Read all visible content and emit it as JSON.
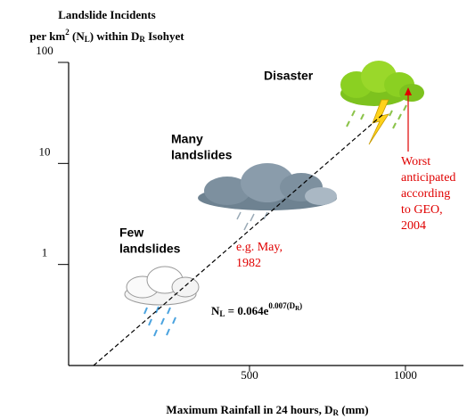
{
  "chart_data": {
    "type": "line",
    "y_label": {
      "line1": "Landslide Incidents",
      "line2": [
        "per km",
        "2",
        " (N",
        "L",
        ") within D",
        "R",
        " Isohyet"
      ]
    },
    "x_label": [
      "Maximum Rainfall in 24 hours, D",
      "R",
      " (mm)"
    ],
    "x": [
      0,
      930
    ],
    "values": [
      0.1,
      31
    ],
    "color": "#000000",
    "line_style": "dashed",
    "log_y": true,
    "xlim": [
      -80,
      1186
    ],
    "ylim": [
      0.1,
      100
    ],
    "xticks": [
      500,
      1000
    ],
    "yticks": [
      1,
      10,
      100
    ],
    "annotations": {
      "disaster": "Disaster",
      "many": [
        "Many",
        "landslides"
      ],
      "few": [
        "Few",
        "landslides"
      ],
      "example": [
        "e.g. May,",
        "1982"
      ],
      "worst": [
        "Worst",
        "anticipated",
        "according",
        "to GEO,",
        "2004"
      ],
      "equation": [
        "N",
        "L",
        " = 0.064e",
        "0.007(D",
        "R",
        ")"
      ]
    }
  }
}
